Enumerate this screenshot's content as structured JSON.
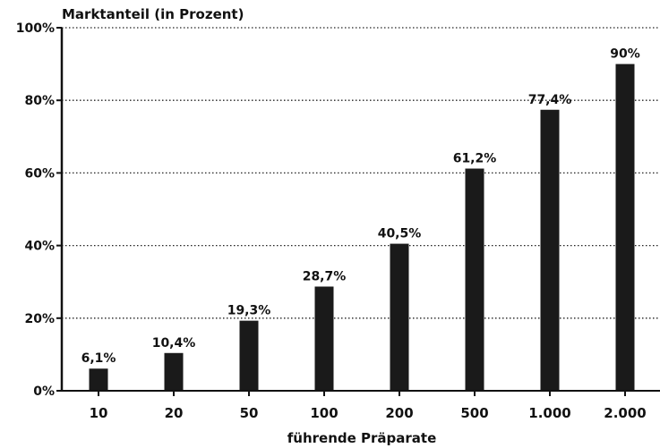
{
  "chart_data": {
    "type": "bar",
    "ylabel": "Marktanteil (in Prozent)",
    "xlabel": "führende Präparate",
    "categories": [
      "10",
      "20",
      "50",
      "100",
      "200",
      "500",
      "1.000",
      "2.000"
    ],
    "values": [
      6.1,
      10.4,
      19.3,
      28.7,
      40.5,
      61.2,
      77.4,
      90
    ],
    "data_labels": [
      "6,1%",
      "10,4%",
      "19,3%",
      "28,7%",
      "40,5%",
      "61,2%",
      "77,4%",
      "90%"
    ],
    "ylim": [
      0,
      100
    ],
    "y_ticks": [
      0,
      20,
      40,
      60,
      80,
      100
    ],
    "y_tick_labels": [
      "0%",
      "20%",
      "40%",
      "60%",
      "80%",
      "100%"
    ],
    "grid": "horizontal dotted",
    "legend": "none",
    "bar_color": "#1a1a1a"
  }
}
